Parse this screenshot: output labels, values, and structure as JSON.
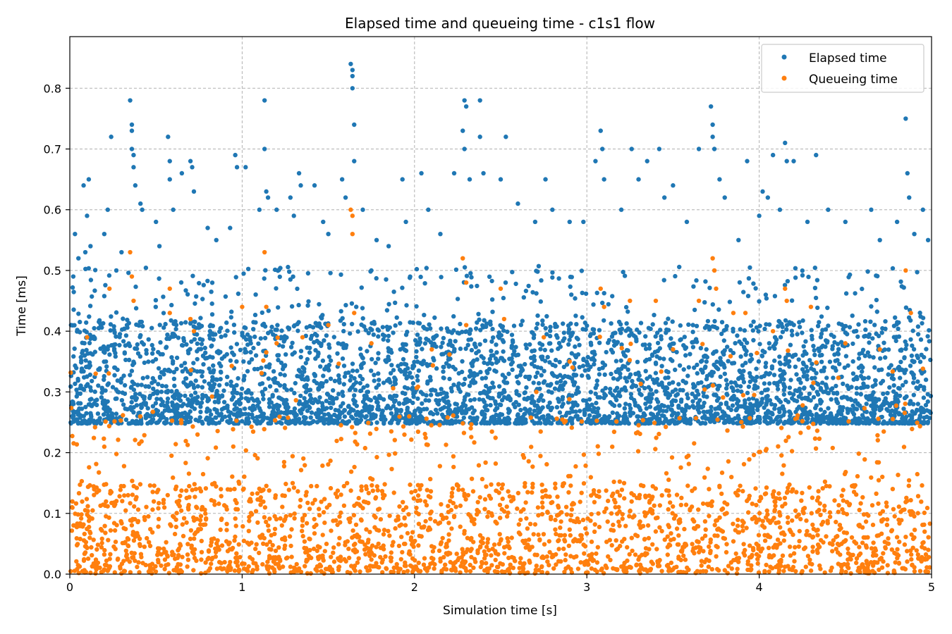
{
  "chart_data": {
    "type": "scatter",
    "title": "Elapsed time and queueing time - c1s1 flow",
    "xlabel": "Simulation time [s]",
    "ylabel": "Time [ms]",
    "xlim": [
      0,
      5
    ],
    "ylim": [
      0,
      0.885
    ],
    "x_ticks": [
      0,
      1,
      2,
      3,
      4,
      5
    ],
    "x_tick_labels": [
      "0",
      "1",
      "2",
      "3",
      "4",
      "5"
    ],
    "y_ticks": [
      0.0,
      0.1,
      0.2,
      0.3,
      0.4,
      0.5,
      0.6,
      0.7,
      0.8
    ],
    "y_tick_labels": [
      "0.0",
      "0.1",
      "0.2",
      "0.3",
      "0.4",
      "0.5",
      "0.6",
      "0.7",
      "0.8"
    ],
    "grid": true,
    "legend_position": "top-right",
    "series": [
      {
        "name": "Elapsed time",
        "color": "#1f77b4",
        "points": [
          [
            0.02,
            0.49
          ],
          [
            0.03,
            0.56
          ],
          [
            0.05,
            0.52
          ],
          [
            0.08,
            0.64
          ],
          [
            0.09,
            0.53
          ],
          [
            0.1,
            0.59
          ],
          [
            0.11,
            0.65
          ],
          [
            0.12,
            0.54
          ],
          [
            0.2,
            0.56
          ],
          [
            0.22,
            0.6
          ],
          [
            0.24,
            0.72
          ],
          [
            0.27,
            0.5
          ],
          [
            0.3,
            0.53
          ],
          [
            0.35,
            0.78
          ],
          [
            0.36,
            0.74
          ],
          [
            0.36,
            0.73
          ],
          [
            0.36,
            0.7
          ],
          [
            0.37,
            0.69
          ],
          [
            0.37,
            0.67
          ],
          [
            0.38,
            0.64
          ],
          [
            0.41,
            0.61
          ],
          [
            0.42,
            0.6
          ],
          [
            0.5,
            0.58
          ],
          [
            0.52,
            0.54
          ],
          [
            0.57,
            0.72
          ],
          [
            0.58,
            0.68
          ],
          [
            0.58,
            0.65
          ],
          [
            0.6,
            0.6
          ],
          [
            0.65,
            0.66
          ],
          [
            0.7,
            0.68
          ],
          [
            0.71,
            0.67
          ],
          [
            0.72,
            0.63
          ],
          [
            0.8,
            0.57
          ],
          [
            0.85,
            0.55
          ],
          [
            0.93,
            0.57
          ],
          [
            0.96,
            0.69
          ],
          [
            0.97,
            0.67
          ],
          [
            1.02,
            0.67
          ],
          [
            1.1,
            0.6
          ],
          [
            1.13,
            0.78
          ],
          [
            1.13,
            0.7
          ],
          [
            1.14,
            0.63
          ],
          [
            1.15,
            0.62
          ],
          [
            1.2,
            0.6
          ],
          [
            1.28,
            0.62
          ],
          [
            1.3,
            0.59
          ],
          [
            1.33,
            0.66
          ],
          [
            1.34,
            0.64
          ],
          [
            1.42,
            0.64
          ],
          [
            1.47,
            0.58
          ],
          [
            1.5,
            0.56
          ],
          [
            1.58,
            0.65
          ],
          [
            1.6,
            0.62
          ],
          [
            1.63,
            0.84
          ],
          [
            1.64,
            0.83
          ],
          [
            1.64,
            0.82
          ],
          [
            1.64,
            0.8
          ],
          [
            1.65,
            0.74
          ],
          [
            1.65,
            0.68
          ],
          [
            1.7,
            0.6
          ],
          [
            1.78,
            0.55
          ],
          [
            1.85,
            0.54
          ],
          [
            1.93,
            0.65
          ],
          [
            1.95,
            0.58
          ],
          [
            2.04,
            0.66
          ],
          [
            2.08,
            0.6
          ],
          [
            2.15,
            0.56
          ],
          [
            2.23,
            0.66
          ],
          [
            2.28,
            0.73
          ],
          [
            2.29,
            0.78
          ],
          [
            2.3,
            0.77
          ],
          [
            2.29,
            0.7
          ],
          [
            2.32,
            0.65
          ],
          [
            2.38,
            0.78
          ],
          [
            2.38,
            0.72
          ],
          [
            2.4,
            0.66
          ],
          [
            2.5,
            0.65
          ],
          [
            2.53,
            0.72
          ],
          [
            2.6,
            0.61
          ],
          [
            2.7,
            0.58
          ],
          [
            2.76,
            0.65
          ],
          [
            2.8,
            0.6
          ],
          [
            2.9,
            0.58
          ],
          [
            2.98,
            0.58
          ],
          [
            3.05,
            0.68
          ],
          [
            3.08,
            0.73
          ],
          [
            3.09,
            0.7
          ],
          [
            3.1,
            0.65
          ],
          [
            3.2,
            0.6
          ],
          [
            3.26,
            0.7
          ],
          [
            3.3,
            0.65
          ],
          [
            3.35,
            0.68
          ],
          [
            3.42,
            0.7
          ],
          [
            3.45,
            0.62
          ],
          [
            3.5,
            0.64
          ],
          [
            3.58,
            0.58
          ],
          [
            3.65,
            0.7
          ],
          [
            3.72,
            0.77
          ],
          [
            3.73,
            0.74
          ],
          [
            3.73,
            0.72
          ],
          [
            3.74,
            0.7
          ],
          [
            3.77,
            0.65
          ],
          [
            3.8,
            0.62
          ],
          [
            3.88,
            0.55
          ],
          [
            3.93,
            0.68
          ],
          [
            4.0,
            0.59
          ],
          [
            4.02,
            0.63
          ],
          [
            4.05,
            0.62
          ],
          [
            4.08,
            0.69
          ],
          [
            4.12,
            0.6
          ],
          [
            4.15,
            0.71
          ],
          [
            4.16,
            0.68
          ],
          [
            4.2,
            0.68
          ],
          [
            4.28,
            0.58
          ],
          [
            4.33,
            0.69
          ],
          [
            4.4,
            0.6
          ],
          [
            4.5,
            0.58
          ],
          [
            4.65,
            0.6
          ],
          [
            4.7,
            0.55
          ],
          [
            4.8,
            0.58
          ],
          [
            4.85,
            0.75
          ],
          [
            4.86,
            0.66
          ],
          [
            4.87,
            0.62
          ],
          [
            4.9,
            0.56
          ],
          [
            4.95,
            0.6
          ],
          [
            4.98,
            0.55
          ]
        ]
      },
      {
        "name": "Queueing time",
        "color": "#ff7f0e",
        "points": [
          [
            0.1,
            0.39
          ],
          [
            0.15,
            0.33
          ],
          [
            0.23,
            0.47
          ],
          [
            0.35,
            0.53
          ],
          [
            0.36,
            0.49
          ],
          [
            0.37,
            0.45
          ],
          [
            0.58,
            0.47
          ],
          [
            0.58,
            0.43
          ],
          [
            0.7,
            0.42
          ],
          [
            0.72,
            0.4
          ],
          [
            1.0,
            0.44
          ],
          [
            1.13,
            0.53
          ],
          [
            1.14,
            0.44
          ],
          [
            1.2,
            0.38
          ],
          [
            1.35,
            0.39
          ],
          [
            1.5,
            0.41
          ],
          [
            1.63,
            0.6
          ],
          [
            1.64,
            0.59
          ],
          [
            1.64,
            0.56
          ],
          [
            1.65,
            0.43
          ],
          [
            1.75,
            0.38
          ],
          [
            2.1,
            0.37
          ],
          [
            2.28,
            0.52
          ],
          [
            2.3,
            0.48
          ],
          [
            2.3,
            0.41
          ],
          [
            2.5,
            0.47
          ],
          [
            2.52,
            0.42
          ],
          [
            2.75,
            0.39
          ],
          [
            2.9,
            0.35
          ],
          [
            3.08,
            0.47
          ],
          [
            3.1,
            0.44
          ],
          [
            3.25,
            0.45
          ],
          [
            3.4,
            0.45
          ],
          [
            3.5,
            0.37
          ],
          [
            3.65,
            0.45
          ],
          [
            3.73,
            0.52
          ],
          [
            3.74,
            0.5
          ],
          [
            3.75,
            0.47
          ],
          [
            3.85,
            0.43
          ],
          [
            3.92,
            0.43
          ],
          [
            4.08,
            0.4
          ],
          [
            4.15,
            0.47
          ],
          [
            4.16,
            0.45
          ],
          [
            4.3,
            0.44
          ],
          [
            4.5,
            0.38
          ],
          [
            4.7,
            0.37
          ],
          [
            4.85,
            0.5
          ],
          [
            4.88,
            0.43
          ]
        ]
      }
    ]
  }
}
